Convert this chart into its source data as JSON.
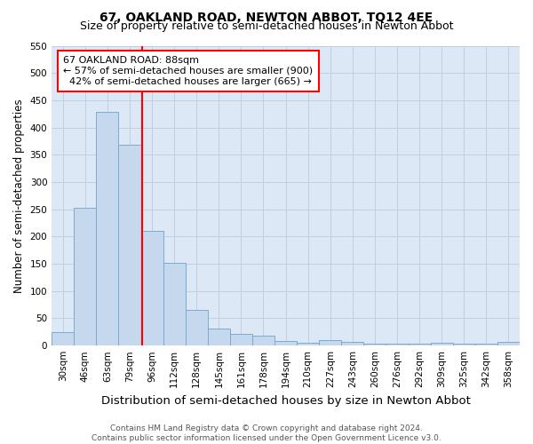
{
  "title": "67, OAKLAND ROAD, NEWTON ABBOT, TQ12 4EE",
  "subtitle": "Size of property relative to semi-detached houses in Newton Abbot",
  "xlabel": "Distribution of semi-detached houses by size in Newton Abbot",
  "ylabel": "Number of semi-detached properties",
  "footnote": "Contains HM Land Registry data © Crown copyright and database right 2024.\nContains public sector information licensed under the Open Government Licence v3.0.",
  "categories": [
    "30sqm",
    "46sqm",
    "63sqm",
    "79sqm",
    "96sqm",
    "112sqm",
    "128sqm",
    "145sqm",
    "161sqm",
    "178sqm",
    "194sqm",
    "210sqm",
    "227sqm",
    "243sqm",
    "260sqm",
    "276sqm",
    "292sqm",
    "309sqm",
    "325sqm",
    "342sqm",
    "358sqm"
  ],
  "values": [
    25,
    253,
    428,
    368,
    210,
    152,
    65,
    32,
    22,
    19,
    9,
    5,
    10,
    7,
    4,
    3,
    4,
    5,
    3,
    3,
    6
  ],
  "bar_color": "#c5d8ee",
  "bar_edge_color": "#7aacce",
  "vline_color": "red",
  "vline_label": "67 OAKLAND ROAD: 88sqm",
  "pct_smaller": 57,
  "pct_smaller_count": 900,
  "pct_larger": 42,
  "pct_larger_count": 665,
  "annotation_box_color": "white",
  "annotation_box_edgecolor": "red",
  "ylim": [
    0,
    550
  ],
  "yticks": [
    0,
    50,
    100,
    150,
    200,
    250,
    300,
    350,
    400,
    450,
    500,
    550
  ],
  "background_color": "#dce8f5",
  "grid_color": "#c0cfe0",
  "title_fontsize": 10,
  "subtitle_fontsize": 9,
  "axis_label_fontsize": 8.5,
  "tick_fontsize": 7.5,
  "annotation_fontsize": 8,
  "xlabel_fontsize": 9.5
}
